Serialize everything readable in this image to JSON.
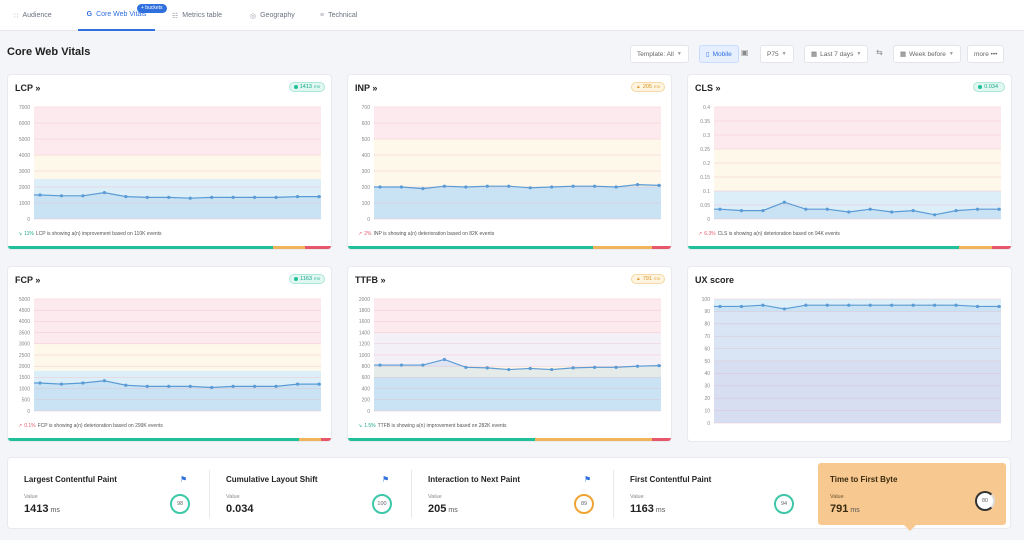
{
  "tabs": [
    {
      "label": "Audience",
      "icon": "users-icon",
      "glyph": "∷"
    },
    {
      "label": "Core Web Vitals",
      "icon": "google-icon",
      "glyph": "G"
    },
    {
      "label": "Metrics table",
      "icon": "table-icon",
      "glyph": "☷"
    },
    {
      "label": "Geography",
      "icon": "globe-icon",
      "glyph": "◎"
    },
    {
      "label": "Technical",
      "icon": "bars-icon",
      "glyph": "≡"
    }
  ],
  "buckets_badge": "+ buckets",
  "page_title": "Core Web Vitals",
  "controls": {
    "template": "Template: All",
    "mobile": "Mobile",
    "percentile": "P75",
    "period": "Last 7 days",
    "compare": "Week before",
    "more": "more •••"
  },
  "cards": [
    {
      "title": "LCP »",
      "pill": {
        "value": "1413",
        "unit": "ms",
        "status": "good"
      },
      "caption": {
        "trend_glyph": "↘",
        "change": "11%",
        "text": "LCP is showing a(n) improvement based on 110K events",
        "direction": "up"
      },
      "status_segments": [
        0.82,
        0.1,
        0.08
      ],
      "chart_data": {
        "type": "line",
        "y_ticks": [
          0,
          1000,
          2000,
          3000,
          4000,
          5000,
          6000,
          7000
        ],
        "ylim": [
          0,
          7000
        ],
        "bands": [
          {
            "from": 0,
            "to": 2500,
            "color": "#dceef8"
          },
          {
            "from": 2500,
            "to": 4000,
            "color": "#fdf8ea"
          },
          {
            "from": 4000,
            "to": 7000,
            "color": "#fdeaee"
          }
        ],
        "values": [
          1500,
          1450,
          1450,
          1650,
          1400,
          1350,
          1350,
          1300,
          1350,
          1350,
          1350,
          1350,
          1400,
          1400
        ]
      }
    },
    {
      "title": "INP »",
      "pill": {
        "value": "205",
        "unit": "ms",
        "status": "warn"
      },
      "caption": {
        "trend_glyph": "↗",
        "change": "2%",
        "text": "INP is showing a(n) deterioration based on 82K events",
        "direction": "down"
      },
      "status_segments": [
        0.76,
        0.18,
        0.06
      ],
      "chart_data": {
        "type": "line",
        "y_ticks": [
          0,
          100,
          200,
          300,
          400,
          500,
          600,
          700
        ],
        "ylim": [
          0,
          700
        ],
        "bands": [
          {
            "from": 0,
            "to": 200,
            "color": "#dceef8"
          },
          {
            "from": 200,
            "to": 500,
            "color": "#fdf8ea"
          },
          {
            "from": 500,
            "to": 700,
            "color": "#fdeaee"
          }
        ],
        "values": [
          200,
          200,
          190,
          205,
          200,
          205,
          205,
          195,
          200,
          205,
          205,
          200,
          215,
          210
        ]
      }
    },
    {
      "title": "CLS »",
      "pill": {
        "value": "0.034",
        "unit": "",
        "status": "good"
      },
      "caption": {
        "trend_glyph": "↗",
        "change": "6.3%",
        "text": "CLS is showing a(n) deterioration based on 94K events",
        "direction": "down"
      },
      "status_segments": [
        0.84,
        0.1,
        0.06
      ],
      "chart_data": {
        "type": "line",
        "y_ticks": [
          0,
          0.05,
          0.1,
          0.15,
          0.2,
          0.25,
          0.3,
          0.35,
          0.4
        ],
        "ylim": [
          0,
          0.4
        ],
        "bands": [
          {
            "from": 0,
            "to": 0.1,
            "color": "#dceef8"
          },
          {
            "from": 0.1,
            "to": 0.25,
            "color": "#fdf8ea"
          },
          {
            "from": 0.25,
            "to": 0.4,
            "color": "#fdeaee"
          }
        ],
        "values": [
          0.035,
          0.03,
          0.03,
          0.06,
          0.035,
          0.035,
          0.025,
          0.035,
          0.025,
          0.03,
          0.015,
          0.03,
          0.035,
          0.035
        ]
      }
    },
    {
      "title": "FCP »",
      "pill": {
        "value": "1163",
        "unit": "ms",
        "status": "good"
      },
      "caption": {
        "trend_glyph": "↗",
        "change": "0.1%",
        "text": "FCP is showing a(n) deterioration based on 299K events",
        "direction": "down"
      },
      "status_segments": [
        0.9,
        0.07,
        0.03
      ],
      "chart_data": {
        "type": "line",
        "y_ticks": [
          0,
          500,
          1000,
          1500,
          2000,
          2500,
          3000,
          3500,
          4000,
          4500,
          5000
        ],
        "ylim": [
          0,
          5000
        ],
        "bands": [
          {
            "from": 0,
            "to": 1800,
            "color": "#dceef8"
          },
          {
            "from": 1800,
            "to": 3000,
            "color": "#fdf8ea"
          },
          {
            "from": 3000,
            "to": 5000,
            "color": "#fdeaee"
          }
        ],
        "values": [
          1250,
          1200,
          1250,
          1350,
          1150,
          1100,
          1100,
          1100,
          1050,
          1100,
          1100,
          1100,
          1200,
          1200
        ]
      }
    },
    {
      "title": "TTFB »",
      "pill": {
        "value": "791",
        "unit": "ms",
        "status": "warn"
      },
      "caption": {
        "trend_glyph": "↘",
        "change": "1.5%",
        "text": "TTFB is showing a(n) improvement based on 282K events",
        "direction": "up"
      },
      "status_segments": [
        0.58,
        0.36,
        0.06
      ],
      "chart_data": {
        "type": "line",
        "y_ticks": [
          0,
          200,
          400,
          600,
          800,
          1000,
          1200,
          1400,
          1600,
          1800,
          2000
        ],
        "ylim": [
          0,
          2000
        ],
        "bands": [
          {
            "from": 0,
            "to": 600,
            "color": "#dceef8"
          },
          {
            "from": 600,
            "to": 800,
            "color": "#fdf8ea"
          },
          {
            "from": 800,
            "to": 1400,
            "color": "#f4f0f8"
          },
          {
            "from": 1400,
            "to": 2000,
            "color": "#fdeaee"
          }
        ],
        "values": [
          820,
          820,
          820,
          920,
          780,
          770,
          740,
          760,
          740,
          770,
          780,
          780,
          800,
          810
        ]
      }
    },
    {
      "title": "UX score",
      "pill": null,
      "caption": null,
      "status_segments": null,
      "chart_data": {
        "type": "line",
        "y_ticks": [
          0,
          10,
          20,
          30,
          40,
          50,
          60,
          70,
          80,
          90,
          100
        ],
        "ylim": [
          0,
          100
        ],
        "bands": [
          {
            "from": 0,
            "to": 50,
            "color": "#ece8f6"
          },
          {
            "from": 50,
            "to": 90,
            "color": "#eef0f8"
          },
          {
            "from": 90,
            "to": 100,
            "color": "#dceef8"
          }
        ],
        "values": [
          94,
          94,
          95,
          92,
          95,
          95,
          95,
          95,
          95,
          95,
          95,
          95,
          94,
          94
        ]
      }
    }
  ],
  "summary": [
    {
      "title": "Largest Contentful Paint",
      "value_label": "Value",
      "value": "1413",
      "unit": "ms",
      "score": "98",
      "ring": "green",
      "bookmark": true
    },
    {
      "title": "Cumulative Layout Shift",
      "value_label": "Value",
      "value": "0.034",
      "unit": "",
      "score": "100",
      "ring": "green",
      "bookmark": true
    },
    {
      "title": "Interaction to Next Paint",
      "value_label": "Value",
      "value": "205",
      "unit": "ms",
      "score": "89",
      "ring": "amber",
      "bookmark": true
    },
    {
      "title": "First Contentful Paint",
      "value_label": "Value",
      "value": "1163",
      "unit": "ms",
      "score": "94",
      "ring": "green",
      "bookmark": false
    },
    {
      "title": "Time to First Byte",
      "value_label": "Value",
      "value": "791",
      "unit": "ms",
      "score": "80",
      "ring": "dark",
      "bookmark": false
    }
  ],
  "colors": {
    "accent": "#2f6fde",
    "good": "#1fbf9a",
    "warn": "#f0b45a",
    "bad": "#e8566b",
    "line": "#5b9bd5",
    "highlight": "#f7c88f"
  }
}
